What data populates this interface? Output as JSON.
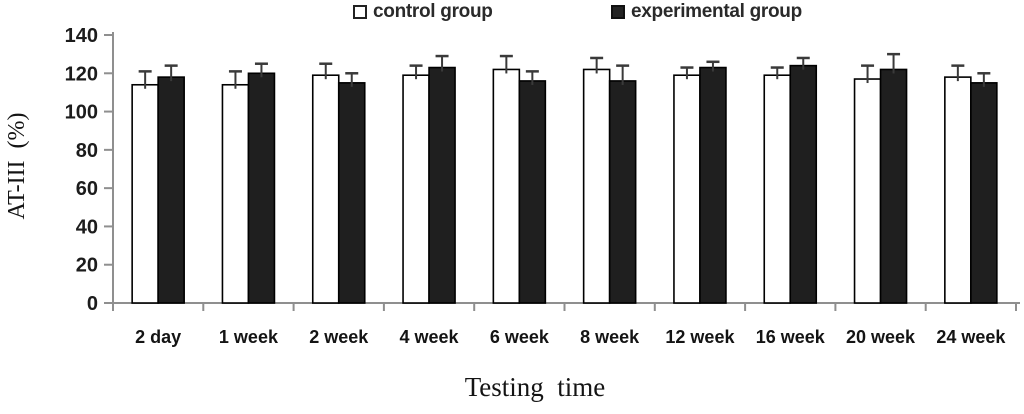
{
  "chart_data": {
    "type": "bar",
    "title": "",
    "xlabel": "Testing  time",
    "ylabel": "AT-III  (%)",
    "categories": [
      "2 day",
      "1 week",
      "2 week",
      "4 week",
      "6 week",
      "8 week",
      "12 week",
      "16 week",
      "20 week",
      "24 week"
    ],
    "series": [
      {
        "name": "control group",
        "fill": "#ffffff",
        "stroke": "#000000",
        "values": [
          114,
          114,
          119,
          119,
          122,
          122,
          119,
          119,
          117,
          118
        ],
        "errors": [
          7,
          7,
          6,
          5,
          7,
          6,
          4,
          4,
          7,
          6
        ]
      },
      {
        "name": "experimental group",
        "fill": "#1f1f1f",
        "stroke": "#000000",
        "values": [
          118,
          120,
          115,
          123,
          116,
          116,
          123,
          124,
          122,
          115
        ],
        "errors": [
          6,
          5,
          5,
          6,
          5,
          8,
          3,
          4,
          8,
          5
        ]
      }
    ],
    "ylim": [
      0,
      140
    ],
    "yticks": [
      0,
      20,
      40,
      60,
      80,
      100,
      120,
      140
    ],
    "error_bars": "upper-only",
    "grid": false,
    "legend_position": "top-center"
  },
  "colors": {
    "axis": "#8f8f8f",
    "error_bar": "#3a3a3a",
    "tick_text": "#1c1c1c"
  }
}
